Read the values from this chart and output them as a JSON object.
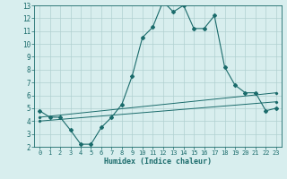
{
  "xlabel": "Humidex (Indice chaleur)",
  "bg_color": "#d8eeee",
  "grid_color": "#b0d0d0",
  "line_color": "#1a6b6b",
  "xlim": [
    -0.5,
    23.5
  ],
  "ylim": [
    2,
    13
  ],
  "xticks": [
    0,
    1,
    2,
    3,
    4,
    5,
    6,
    7,
    8,
    9,
    10,
    11,
    12,
    13,
    14,
    15,
    16,
    17,
    18,
    19,
    20,
    21,
    22,
    23
  ],
  "yticks": [
    2,
    3,
    4,
    5,
    6,
    7,
    8,
    9,
    10,
    11,
    12,
    13
  ],
  "main_x": [
    0,
    1,
    2,
    3,
    4,
    5,
    6,
    7,
    8,
    9,
    10,
    11,
    12,
    13,
    14,
    15,
    16,
    17,
    18,
    19,
    20,
    21,
    22,
    23
  ],
  "main_y": [
    4.8,
    4.3,
    4.3,
    3.3,
    2.2,
    2.2,
    3.5,
    4.3,
    5.3,
    7.5,
    10.5,
    11.3,
    13.3,
    12.5,
    13.0,
    11.2,
    11.2,
    12.2,
    8.2,
    6.8,
    6.2,
    6.2,
    4.8,
    5.0
  ],
  "line2_x": [
    0,
    23
  ],
  "line2_y": [
    4.3,
    6.2
  ],
  "line3_x": [
    0,
    23
  ],
  "line3_y": [
    4.0,
    5.5
  ]
}
